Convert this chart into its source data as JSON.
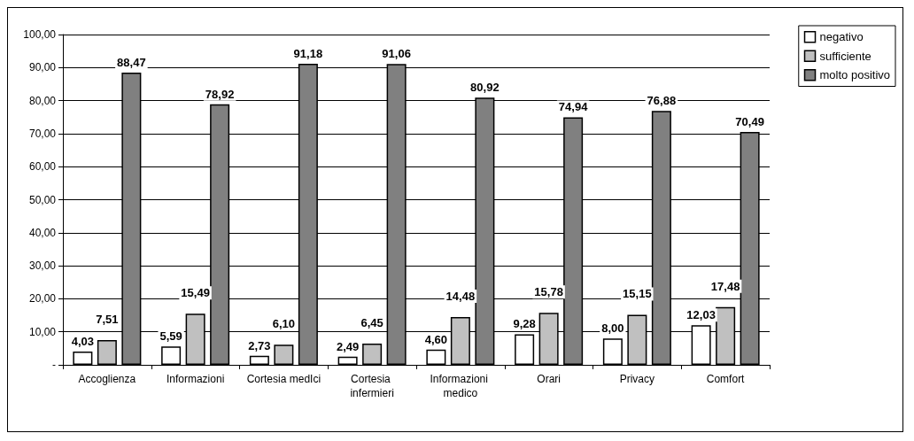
{
  "chart_data": {
    "type": "bar",
    "categories": [
      "Accoglienza",
      "Informazioni",
      "Cortesia medIci",
      "Cortesia infermieri",
      "Informazioni medico",
      "Orari",
      "Privacy",
      "Comfort"
    ],
    "series": [
      {
        "name": "negativo",
        "color": "#ffffff",
        "values": [
          4.03,
          5.59,
          2.73,
          2.49,
          4.6,
          9.28,
          8.0,
          12.03
        ],
        "value_labels": [
          "4,03",
          "5,59",
          "2,73",
          "2,49",
          "4,60",
          "9,28",
          "8,00",
          "12,03"
        ]
      },
      {
        "name": "sufficiente",
        "color": "#c0c0c0",
        "values": [
          7.51,
          15.49,
          6.1,
          6.45,
          14.48,
          15.78,
          15.15,
          17.48
        ],
        "value_labels": [
          "7,51",
          "15,49",
          "6,10",
          "6,45",
          "14,48",
          "15,78",
          "15,15",
          "17,48"
        ]
      },
      {
        "name": "molto positivo",
        "color": "#808080",
        "values": [
          88.47,
          78.92,
          91.18,
          91.06,
          80.92,
          74.94,
          76.88,
          70.49
        ],
        "value_labels": [
          "88,47",
          "78,92",
          "91,18",
          "91,06",
          "80,92",
          "74,94",
          "76,88",
          "70,49"
        ]
      }
    ],
    "ylim": [
      0,
      100
    ],
    "yticks": [
      {
        "value": 0,
        "label": "-"
      },
      {
        "value": 10,
        "label": "10,00"
      },
      {
        "value": 20,
        "label": "20,00"
      },
      {
        "value": 30,
        "label": "30,00"
      },
      {
        "value": 40,
        "label": "40,00"
      },
      {
        "value": 50,
        "label": "50,00"
      },
      {
        "value": 60,
        "label": "60,00"
      },
      {
        "value": 70,
        "label": "70,00"
      },
      {
        "value": 80,
        "label": "80,00"
      },
      {
        "value": 90,
        "label": "90,00"
      },
      {
        "value": 100,
        "label": "100,00"
      }
    ],
    "grid": "y",
    "legend": "right"
  }
}
